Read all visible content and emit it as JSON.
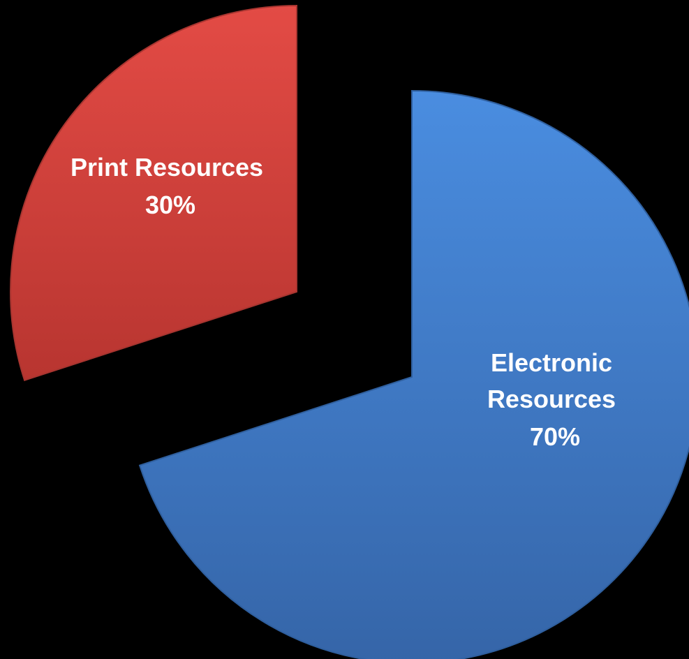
{
  "chart_data": {
    "type": "pie",
    "title": "",
    "categories": [
      "Electronic Resources",
      "Print Resources"
    ],
    "values": [
      70,
      30
    ],
    "labels": [
      {
        "lines": [
          "Electronic",
          "Resources"
        ],
        "value_label": "70%"
      },
      {
        "lines": [
          "Print Resources"
        ],
        "value_label": "30%"
      }
    ],
    "colors": [
      "#4a86d6",
      "#d9453f"
    ],
    "exploded": true,
    "legend": "none"
  }
}
